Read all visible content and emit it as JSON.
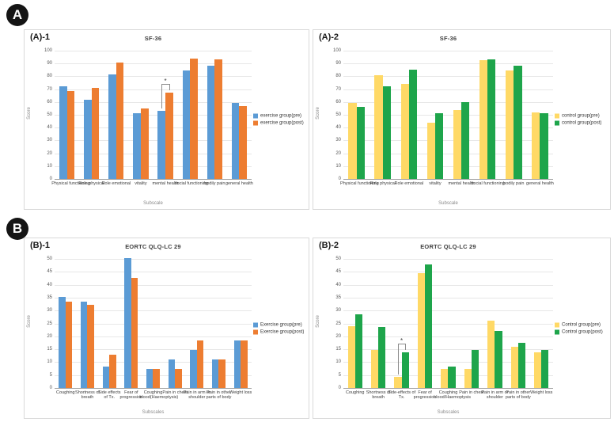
{
  "badges": [
    {
      "label": "A"
    },
    {
      "label": "B"
    }
  ],
  "colors": {
    "blue": "#5B9BD5",
    "orange": "#ED7D31",
    "yellow": "#FFD966",
    "green": "#1EA54B",
    "grid": "#E7E7E7",
    "axis_text": "#595959"
  },
  "chart_data": [
    {
      "id": "A1",
      "panel_label": "(A)-1",
      "type": "bar",
      "title": "SF-36",
      "xlabel": "Subscale",
      "ylabel": "Score",
      "ylim": [
        0,
        100
      ],
      "ytick_step": 10,
      "grid": true,
      "legend_position": "right",
      "categories": [
        "Physical functioning",
        "Role physical",
        "Role emotional",
        "vitality",
        "mental health",
        "social functioning",
        "bodily pain",
        "general health"
      ],
      "series": [
        {
          "name": "exercise group(pre)",
          "color_key": "blue",
          "values": [
            72,
            62,
            81.5,
            51.5,
            53,
            84.5,
            88,
            59
          ]
        },
        {
          "name": "exercise group(post)",
          "color_key": "orange",
          "values": [
            68.5,
            71,
            90.5,
            55,
            67.5,
            94,
            93,
            57
          ]
        }
      ],
      "significance": {
        "category_index": 4,
        "marker": "*"
      }
    },
    {
      "id": "A2",
      "panel_label": "(A)-2",
      "type": "bar",
      "title": "SF-36",
      "xlabel": "Subscale",
      "ylabel": "Score",
      "ylim": [
        0,
        100
      ],
      "ytick_step": 10,
      "grid": true,
      "legend_position": "right",
      "categories": [
        "Physical functioning",
        "Role physical",
        "Role emotional",
        "vitality",
        "mental health",
        "social functioning",
        "bodily pain",
        "general health"
      ],
      "series": [
        {
          "name": "control group(pre)",
          "color_key": "yellow",
          "values": [
            59.5,
            81,
            74,
            44,
            54,
            92.5,
            84.5,
            52
          ]
        },
        {
          "name": "control group(post)",
          "color_key": "green",
          "values": [
            56,
            72.5,
            85.5,
            51.5,
            60,
            93.5,
            88,
            51
          ]
        }
      ]
    },
    {
      "id": "B1",
      "panel_label": "(B)-1",
      "type": "bar",
      "title": "EORTC QLQ-LC 29",
      "xlabel": "Subscales",
      "ylabel": "Score",
      "ylim": [
        0,
        50
      ],
      "ytick_step": 5,
      "grid": true,
      "legend_position": "right",
      "categories": [
        "Coughing",
        "Shortness of breath",
        "Side effects of Tx.",
        "Fear of progression",
        "Coughing blood(Haemoptysis)",
        "Pain in chest",
        "Pain in arm or shoulder",
        "Pain in other parts of body",
        "Weight loss"
      ],
      "series": [
        {
          "name": "Exercise group(pre)",
          "color_key": "blue",
          "values": [
            35.2,
            33.3,
            8.3,
            50.2,
            7.4,
            11.1,
            14.8,
            11.1,
            18.5
          ]
        },
        {
          "name": "Exercise group(post)",
          "color_key": "orange",
          "values": [
            33.3,
            32.1,
            12.8,
            42.5,
            7.4,
            7.4,
            18.5,
            11.1,
            18.5
          ]
        }
      ]
    },
    {
      "id": "B2",
      "panel_label": "(B)-2",
      "type": "bar",
      "title": "EORTC QLQ-LC 29",
      "xlabel": "Subscales",
      "ylabel": "Score",
      "ylim": [
        0,
        50
      ],
      "ytick_step": 5,
      "grid": true,
      "legend_position": "right",
      "categories": [
        "Coughing",
        "Shortness of breath",
        "Side-effects of Tx.",
        "Fear of progression",
        "Coughing blood/Haemoptysis",
        "Pain in chest",
        "Pain in arm or shoulder",
        "Pain in other parts of body",
        "Weight loss"
      ],
      "series": [
        {
          "name": "Control group(pre)",
          "color_key": "yellow",
          "values": [
            24,
            14.8,
            4.3,
            44.5,
            7.4,
            7.4,
            26,
            16,
            13.7
          ]
        },
        {
          "name": "Control group(post)",
          "color_key": "green",
          "values": [
            28.5,
            23.5,
            13.7,
            48,
            8.3,
            14.8,
            22.2,
            17.4,
            14.8
          ]
        }
      ],
      "significance": {
        "category_index": 2,
        "marker": "*"
      }
    }
  ]
}
